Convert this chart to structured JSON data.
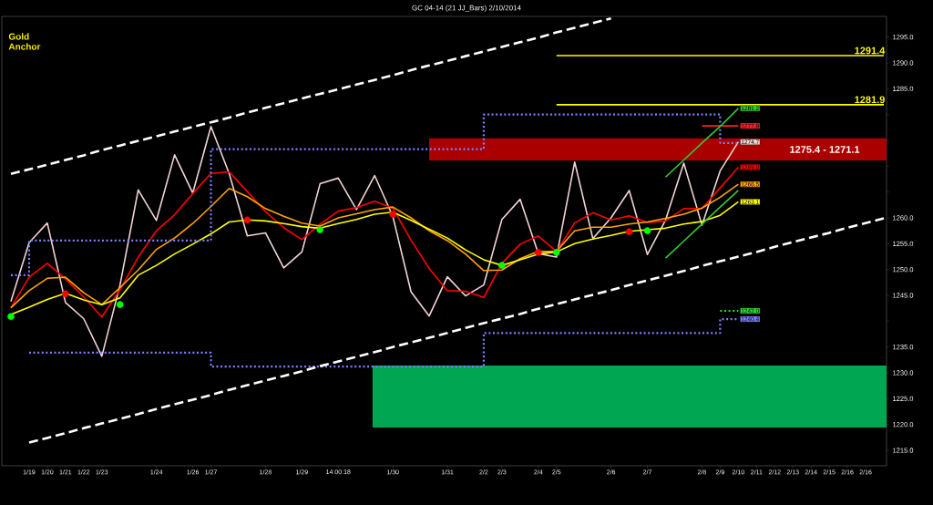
{
  "chart_data": {
    "type": "line",
    "title": "GC 04-14 (21 JJ_Bars)  2/10/2014",
    "categories": [
      null,
      "1/19",
      "1/20",
      "1/21",
      "1/22",
      "1/23",
      null,
      null,
      "1/24",
      null,
      "1/26",
      "1/27",
      null,
      null,
      "1/28",
      null,
      "1/29",
      null,
      "14:00:18",
      null,
      null,
      "1/30",
      null,
      null,
      "1/31",
      null,
      "2/2",
      "2/3",
      null,
      "2/4",
      "2/5",
      null,
      null,
      "2/6",
      null,
      "2/7",
      null,
      null,
      "2/8",
      "2/9",
      "2/10",
      "2/11",
      "2/12",
      "2/13",
      "2/14",
      "2/15",
      "2/16",
      "2/16",
      null
    ],
    "ylim": [
      1212,
      1299
    ],
    "yticks": [
      {
        "value": 1215,
        "label": "1215.0"
      },
      {
        "value": 1220,
        "label": "1220.0"
      },
      {
        "value": 1225,
        "label": "1225.0"
      },
      {
        "value": 1230,
        "label": "1230.0"
      },
      {
        "value": 1235,
        "label": "1235.0"
      },
      {
        "value": 1240,
        "label": null
      },
      {
        "value": 1245,
        "label": "1245.0"
      },
      {
        "value": 1250,
        "label": "1250.0"
      },
      {
        "value": 1255,
        "label": "1255.0"
      },
      {
        "value": 1260,
        "label": "1260.0"
      },
      {
        "value": 1265,
        "label": null
      },
      {
        "value": 1270,
        "label": null
      },
      {
        "value": 1275,
        "label": null
      },
      {
        "value": 1280,
        "label": null
      },
      {
        "value": 1285,
        "label": "1285.0"
      },
      {
        "value": 1290,
        "label": "1290.0"
      },
      {
        "value": 1295,
        "label": "1295.0"
      }
    ],
    "bands": [
      {
        "axis": "y",
        "from": 1271.1,
        "to": 1275.4,
        "label": "1275.4 - 1271.1",
        "color": "#aa0000"
      },
      {
        "axis": "y",
        "from": 1219.4,
        "to": 1231.4,
        "color": "#00a651"
      }
    ],
    "annotations": [
      "Gold Anchor"
    ],
    "series": [
      {
        "color": "#f2d4d4",
        "values": [
          1243.8,
          1255.2,
          1259.0,
          1243.6,
          1240.5,
          1233.2,
          1247.0,
          1265.4,
          1259.5,
          1272.2,
          1264.8,
          1277.7,
          1268.6,
          1256.5,
          1257.1,
          1250.3,
          1253.4,
          1266.6,
          1267.7,
          1261.6,
          1268.2,
          1260.3,
          1245.7,
          1241.0,
          1248.6,
          1244.9,
          1247.0,
          1259.7,
          1263.6,
          1253.1,
          1252.4,
          1270.8,
          1256.0,
          1260.0,
          1265.3,
          1252.9,
          1259.6,
          1270.6,
          1258.6,
          1269.1,
          1274.7,
          null,
          null,
          null,
          null,
          null,
          null,
          null,
          null
        ],
        "value_labels": [
          null,
          null,
          null,
          null,
          null,
          null,
          null,
          null,
          null,
          null,
          null,
          null,
          null,
          null,
          null,
          null,
          null,
          null,
          null,
          null,
          null,
          null,
          null,
          null,
          null,
          null,
          null,
          null,
          null,
          null,
          null,
          null,
          null,
          null,
          null,
          null,
          null,
          null,
          null,
          null,
          "1274.7",
          null,
          null,
          null,
          null,
          null,
          null,
          null,
          null
        ]
      },
      {
        "color": "#ff0000",
        "values": [
          1242.6,
          1248.5,
          1251.2,
          1248.2,
          1244.7,
          1240.8,
          1246.1,
          1252.4,
          1257.5,
          1260.6,
          1264.7,
          1268.6,
          1268.9,
          1265.1,
          1261.2,
          1258.1,
          1255.8,
          1258.8,
          1261.3,
          1262.0,
          1263.2,
          1261.9,
          1255.7,
          1250.2,
          1245.9,
          1245.8,
          1244.6,
          1251.2,
          1254.9,
          1256.5,
          1253.5,
          1259.0,
          1261.0,
          1259.6,
          1260.4,
          1259.1,
          1259.4,
          1261.8,
          1261.8,
          1265.8,
          1269.8,
          null,
          null,
          null,
          null,
          null,
          null,
          null,
          null
        ],
        "value_labels": [
          null,
          null,
          null,
          null,
          null,
          null,
          null,
          null,
          null,
          null,
          null,
          null,
          null,
          null,
          null,
          null,
          null,
          null,
          null,
          null,
          null,
          null,
          null,
          null,
          null,
          null,
          null,
          null,
          null,
          null,
          null,
          null,
          null,
          null,
          null,
          null,
          null,
          null,
          null,
          null,
          "1269.8",
          null,
          null,
          null,
          null,
          null,
          null,
          null,
          null
        ]
      },
      {
        "color": "#ffa500",
        "values": [
          1242.6,
          1245.9,
          1248.3,
          1248.5,
          1245.5,
          1243.2,
          1246.5,
          1249.9,
          1253.9,
          1256.1,
          1258.9,
          1262.2,
          1265.7,
          1264.1,
          1261.8,
          1260.3,
          1259.0,
          1258.4,
          1260.0,
          1260.8,
          1261.6,
          1262.1,
          1260.0,
          1257.5,
          1255.6,
          1253.0,
          1249.8,
          1249.9,
          1252.1,
          1253.5,
          1253.5,
          1257.5,
          1258.2,
          1258.2,
          1258.8,
          1259.2,
          1259.9,
          1260.7,
          1261.9,
          1264.0,
          1266.5,
          null,
          null,
          null,
          null,
          null,
          null,
          null,
          null
        ],
        "value_labels": [
          null,
          null,
          null,
          null,
          null,
          null,
          null,
          null,
          null,
          null,
          null,
          null,
          null,
          null,
          null,
          null,
          null,
          null,
          null,
          null,
          null,
          null,
          null,
          null,
          null,
          null,
          null,
          null,
          null,
          null,
          null,
          null,
          null,
          null,
          null,
          null,
          null,
          null,
          null,
          null,
          "1266.5",
          null,
          null,
          null,
          null,
          null,
          null,
          null,
          null
        ]
      },
      {
        "color": "#ffff00",
        "values": [
          1241.3,
          1242.7,
          1244.2,
          1245.4,
          1244.1,
          1243.2,
          1244.5,
          1248.9,
          1250.8,
          1253.0,
          1254.9,
          1256.9,
          1259.2,
          1259.6,
          1259.4,
          1258.9,
          1258.3,
          1258.0,
          1258.9,
          1259.7,
          1260.7,
          1261.1,
          1259.5,
          1257.8,
          1256.1,
          1253.8,
          1251.9,
          1250.8,
          1251.9,
          1253.0,
          1253.4,
          1255.0,
          1255.9,
          1256.6,
          1257.4,
          1257.7,
          1258.0,
          1258.8,
          1259.3,
          1260.5,
          1263.1,
          null,
          null,
          null,
          null,
          null,
          null,
          null,
          null
        ],
        "value_labels": [
          null,
          null,
          null,
          null,
          null,
          null,
          null,
          null,
          null,
          null,
          null,
          null,
          null,
          null,
          null,
          null,
          null,
          null,
          null,
          null,
          null,
          null,
          null,
          null,
          null,
          null,
          null,
          null,
          null,
          null,
          null,
          null,
          null,
          null,
          null,
          null,
          null,
          null,
          null,
          null,
          "1263.1",
          null,
          null,
          null,
          null,
          null,
          null,
          null,
          null
        ]
      },
      {
        "type": "step",
        "line_style": "dotted",
        "color": "#8080ff",
        "values": [
          1248.9,
          1255.6,
          1255.6,
          1255.6,
          1255.6,
          1255.6,
          1255.6,
          1255.6,
          1255.6,
          1255.6,
          1255.6,
          1273.3,
          1273.3,
          1273.3,
          1273.3,
          1273.3,
          1273.3,
          1273.3,
          1273.3,
          1273.3,
          1273.3,
          1273.3,
          1273.3,
          1273.3,
          1273.3,
          1273.3,
          1280.0,
          1280.0,
          1280.0,
          1280.0,
          1280.0,
          1280.0,
          1280.0,
          1280.0,
          1280.0,
          1280.0,
          1280.0,
          1280.0,
          1280.0,
          1274.5,
          1274.5,
          null,
          null,
          null,
          null,
          null,
          null,
          null,
          null
        ]
      },
      {
        "type": "step",
        "line_style": "dotted",
        "color": "#8080ff",
        "values": [
          null,
          1233.9,
          1233.9,
          1233.9,
          1233.9,
          1233.9,
          1233.9,
          1233.9,
          1233.9,
          1233.9,
          1233.9,
          1231.2,
          1231.2,
          1231.2,
          1231.2,
          1231.2,
          1231.2,
          1231.2,
          1231.2,
          1231.2,
          1231.2,
          1231.2,
          1231.2,
          1231.2,
          1231.2,
          1231.2,
          1237.7,
          1237.7,
          1237.7,
          1237.7,
          1237.7,
          1237.7,
          1237.7,
          1237.7,
          1237.7,
          1237.7,
          1237.7,
          1237.7,
          1237.7,
          1240.4,
          1240.4,
          null,
          null,
          null,
          null,
          null,
          null,
          null,
          null
        ],
        "value_labels": [
          null,
          null,
          null,
          null,
          null,
          null,
          null,
          null,
          null,
          null,
          null,
          null,
          null,
          null,
          null,
          null,
          null,
          null,
          null,
          null,
          null,
          null,
          null,
          null,
          null,
          null,
          null,
          null,
          null,
          null,
          null,
          null,
          null,
          null,
          null,
          null,
          null,
          null,
          null,
          null,
          "1240.4",
          null,
          null,
          null,
          null,
          null,
          null,
          null,
          null
        ]
      },
      {
        "type": "step",
        "line_style": "dotted",
        "color": "#33dd33",
        "values": [
          null,
          null,
          null,
          null,
          null,
          null,
          null,
          null,
          null,
          null,
          null,
          null,
          null,
          null,
          null,
          null,
          null,
          null,
          null,
          null,
          null,
          null,
          null,
          null,
          null,
          null,
          null,
          null,
          null,
          null,
          null,
          null,
          null,
          null,
          null,
          null,
          null,
          null,
          null,
          1242.0,
          1242.0,
          null,
          null,
          null,
          null,
          null,
          null,
          null,
          null
        ],
        "value_labels": [
          null,
          null,
          null,
          null,
          null,
          null,
          null,
          null,
          null,
          null,
          null,
          null,
          null,
          null,
          null,
          null,
          null,
          null,
          null,
          null,
          null,
          null,
          null,
          null,
          null,
          null,
          null,
          null,
          null,
          null,
          null,
          null,
          null,
          null,
          null,
          null,
          null,
          null,
          null,
          null,
          "1242.0",
          null,
          null,
          null,
          null,
          null,
          null,
          null,
          null
        ]
      },
      {
        "type": "step",
        "color": "#ff2020",
        "values": [
          null,
          null,
          null,
          null,
          null,
          null,
          null,
          null,
          null,
          null,
          null,
          null,
          null,
          null,
          null,
          null,
          null,
          null,
          null,
          null,
          null,
          null,
          null,
          null,
          null,
          null,
          null,
          null,
          null,
          null,
          null,
          null,
          null,
          null,
          null,
          null,
          null,
          null,
          1277.8,
          1277.8,
          1277.8,
          null,
          null,
          null,
          null,
          null,
          null,
          null,
          null
        ],
        "value_labels": [
          null,
          null,
          null,
          null,
          null,
          null,
          null,
          null,
          null,
          null,
          null,
          null,
          null,
          null,
          null,
          null,
          null,
          null,
          null,
          null,
          null,
          null,
          null,
          null,
          null,
          null,
          null,
          null,
          null,
          null,
          null,
          null,
          null,
          null,
          null,
          null,
          null,
          null,
          null,
          null,
          "1277.8",
          null,
          null,
          null,
          null,
          null,
          null,
          null,
          null
        ]
      },
      {
        "line_style": "dashed",
        "color": "#ffffff",
        "values": [
          1268.5,
          1269.4,
          1270.3,
          1271.2,
          1272.1,
          1273.1,
          1274.0,
          1274.9,
          1275.8,
          1276.7,
          1277.6,
          1278.5,
          1279.4,
          1280.4,
          1281.3,
          1282.2,
          1283.1,
          1284.0,
          1284.9,
          1285.8,
          1286.7,
          1287.6,
          1288.6,
          1289.5,
          1290.4,
          1291.3,
          1292.2,
          1293.1,
          1294.0,
          1294.9,
          1295.9,
          1296.8,
          1297.7,
          1298.6,
          null,
          null,
          null,
          null,
          null,
          null,
          null,
          null,
          null,
          null,
          null,
          null,
          null,
          null,
          null
        ]
      },
      {
        "line_style": "dashed",
        "color": "#ffffff",
        "values": [
          null,
          1216.5,
          1217.4,
          1218.3,
          1219.3,
          1220.2,
          1221.1,
          1222.0,
          1223.0,
          1223.9,
          1224.8,
          1225.7,
          1226.7,
          1227.6,
          1228.5,
          1229.4,
          1230.3,
          1231.3,
          1232.2,
          1233.1,
          1234.0,
          1235.0,
          1235.9,
          1236.8,
          1237.7,
          1238.7,
          1239.6,
          1240.5,
          1241.4,
          1242.4,
          1243.3,
          1244.2,
          1245.1,
          1246.0,
          1247.0,
          1247.9,
          1248.8,
          1249.7,
          1250.7,
          1251.6,
          1252.5,
          1253.4,
          1254.4,
          1255.3,
          1256.2,
          1257.1,
          1258.1,
          1259.0,
          1259.9
        ]
      },
      {
        "color": "#33cc33",
        "values": [
          null,
          null,
          null,
          null,
          null,
          null,
          null,
          null,
          null,
          null,
          null,
          null,
          null,
          null,
          null,
          null,
          null,
          null,
          null,
          null,
          null,
          null,
          null,
          null,
          null,
          null,
          null,
          null,
          null,
          null,
          null,
          null,
          null,
          null,
          null,
          null,
          1267.9,
          1271.2,
          1274.5,
          1277.7,
          1281.2,
          null,
          null,
          null,
          null,
          null,
          null,
          null,
          null
        ],
        "value_labels": [
          null,
          null,
          null,
          null,
          null,
          null,
          null,
          null,
          null,
          null,
          null,
          null,
          null,
          null,
          null,
          null,
          null,
          null,
          null,
          null,
          null,
          null,
          null,
          null,
          null,
          null,
          null,
          null,
          null,
          null,
          null,
          null,
          null,
          null,
          null,
          null,
          null,
          null,
          null,
          null,
          "1281.2",
          null,
          null,
          null,
          null,
          null,
          null,
          null,
          null
        ]
      },
      {
        "color": "#33cc33",
        "values": [
          null,
          null,
          null,
          null,
          null,
          null,
          null,
          null,
          null,
          null,
          null,
          null,
          null,
          null,
          null,
          null,
          null,
          null,
          null,
          null,
          null,
          null,
          null,
          null,
          null,
          null,
          null,
          null,
          null,
          null,
          null,
          null,
          null,
          null,
          null,
          null,
          1252.2,
          1255.5,
          1258.8,
          1262.1,
          1265.3,
          null,
          null,
          null,
          null,
          null,
          null,
          null,
          null
        ]
      },
      {
        "color": "#ffff00",
        "values": [
          null,
          null,
          null,
          null,
          null,
          null,
          null,
          null,
          null,
          null,
          null,
          null,
          null,
          null,
          null,
          null,
          null,
          null,
          null,
          null,
          null,
          null,
          null,
          null,
          null,
          null,
          null,
          null,
          null,
          null,
          1291.4,
          1291.4,
          1291.4,
          1291.4,
          1291.4,
          1291.4,
          1291.4,
          1291.4,
          1291.4,
          1291.4,
          1291.4,
          1291.4,
          1291.4,
          1291.4,
          1291.4,
          1291.4,
          1291.4,
          1291.4,
          1291.4
        ],
        "value_labels": [
          null,
          null,
          null,
          null,
          null,
          null,
          null,
          null,
          null,
          null,
          null,
          null,
          null,
          null,
          null,
          null,
          null,
          null,
          null,
          null,
          null,
          null,
          null,
          null,
          null,
          null,
          null,
          null,
          null,
          null,
          null,
          null,
          null,
          null,
          null,
          null,
          null,
          null,
          null,
          null,
          null,
          null,
          null,
          null,
          null,
          null,
          null,
          null,
          "1291.4"
        ]
      },
      {
        "color": "#ffff00",
        "values": [
          null,
          null,
          null,
          null,
          null,
          null,
          null,
          null,
          null,
          null,
          null,
          null,
          null,
          null,
          null,
          null,
          null,
          null,
          null,
          null,
          null,
          null,
          null,
          null,
          null,
          null,
          null,
          null,
          null,
          null,
          1281.9,
          1281.9,
          1281.9,
          1281.9,
          1281.9,
          1281.9,
          1281.9,
          1281.9,
          1281.9,
          1281.9,
          1281.9,
          1281.9,
          1281.9,
          1281.9,
          1281.9,
          1281.9,
          1281.9,
          1281.9,
          1281.9
        ],
        "value_labels": [
          null,
          null,
          null,
          null,
          null,
          null,
          null,
          null,
          null,
          null,
          null,
          null,
          null,
          null,
          null,
          null,
          null,
          null,
          null,
          null,
          null,
          null,
          null,
          null,
          null,
          null,
          null,
          null,
          null,
          null,
          null,
          null,
          null,
          null,
          null,
          null,
          null,
          null,
          null,
          null,
          null,
          null,
          null,
          null,
          null,
          null,
          null,
          null,
          "1281.9"
        ]
      },
      {
        "type": "scatter",
        "marker": "circle",
        "color": "#00ff00",
        "values": [
          1240.9,
          null,
          null,
          null,
          null,
          null,
          1243.2,
          null,
          null,
          null,
          null,
          null,
          null,
          null,
          null,
          null,
          null,
          1257.7,
          null,
          null,
          null,
          null,
          null,
          null,
          null,
          null,
          null,
          1250.8,
          null,
          null,
          1253.3,
          null,
          null,
          null,
          null,
          1257.5,
          null,
          null,
          null,
          null,
          null,
          null,
          null,
          null,
          null,
          null,
          null,
          null,
          null
        ]
      },
      {
        "type": "scatter",
        "marker": "circle",
        "color": "#ff0000",
        "values": [
          null,
          null,
          null,
          1245.3,
          null,
          null,
          null,
          null,
          null,
          null,
          null,
          null,
          null,
          1259.6,
          null,
          null,
          null,
          null,
          null,
          null,
          null,
          1260.7,
          null,
          null,
          null,
          null,
          null,
          null,
          null,
          1253.3,
          null,
          null,
          null,
          null,
          1257.3,
          null,
          null,
          null,
          null,
          null,
          null,
          null,
          null,
          null,
          null,
          null,
          null,
          null,
          null
        ]
      }
    ]
  }
}
